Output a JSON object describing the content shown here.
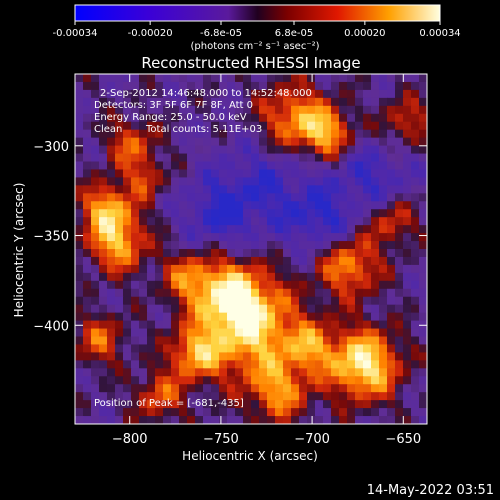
{
  "colorbar": {
    "tick_labels": [
      "-0.00034",
      "-0.00020",
      "-6.8e-05",
      "6.8e-05",
      "0.00020",
      "0.00034"
    ],
    "tick_values": [
      -0.00034,
      -0.0002,
      -6.8e-05,
      6.8e-05,
      0.0002,
      0.00034
    ],
    "range": [
      -0.00034,
      0.00034
    ],
    "units_label": "(photons cm⁻² s⁻¹ asec⁻²)"
  },
  "annotations": {
    "time_range": "2-Sep-2012 14:46:48.000 to 14:52:48.000",
    "detectors": "Detectors: 3F 5F 6F 7F 8F, Att 0",
    "energy_range": "Energy Range: 25.0 - 50.0 keV",
    "method": "Clean",
    "total_counts": "Total counts: 5.11E+03",
    "peak_position": "Position of Peak = [-681,-435]"
  },
  "footer": {
    "date": "14-May-2022 03:51"
  },
  "chart_data": {
    "type": "heatmap",
    "title": "Reconstructed RHESSI Image",
    "xlabel": "Heliocentric X (arcsec)",
    "ylabel": "Heliocentric Y (arcsec)",
    "xlim": [
      -830,
      -637
    ],
    "ylim": [
      -455,
      -260
    ],
    "x_ticks": [
      -800,
      -750,
      -700,
      -650
    ],
    "y_ticks": [
      -300,
      -350,
      -400
    ],
    "x_tick_labels": [
      "−800",
      "−750",
      "−700",
      "−650"
    ],
    "y_tick_labels": [
      "−300",
      "−350",
      "−400"
    ],
    "grid": false,
    "peak": [
      -681,
      -435
    ]
  }
}
